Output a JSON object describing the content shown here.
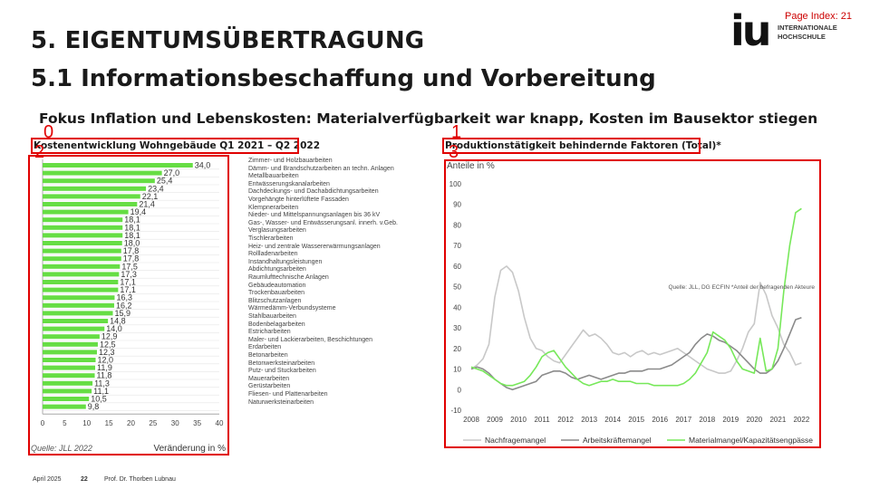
{
  "header": {
    "page_index": "Page Index: 21",
    "title": "5. EIGENTUMSÜBERTRAGUNG",
    "subtitle": "5.1 Informationsbeschaffung und Vorbereitung",
    "focus": "Fokus Inflation und Lebenskosten: Materialverfügbarkeit war knapp, Kosten im Bausektor stiegen"
  },
  "logo": {
    "mark": "iu",
    "line1": "INTERNATIONALE",
    "line2": "HOCHSCHULE"
  },
  "annotations": {
    "labels": [
      "0",
      "1",
      "2",
      "3"
    ]
  },
  "footer": {
    "date": "April 2025",
    "page": "22",
    "author": "Prof. Dr. Thorben Lubnau"
  },
  "colors": {
    "bar_green": "#66dd44",
    "line_light_gray": "#c8c8c8",
    "line_dark_gray": "#8a8a8a",
    "line_green": "#77e85a",
    "annotation_red": "#e00000"
  },
  "chart_data": [
    {
      "type": "bar",
      "orientation": "horizontal",
      "title": "Kostenentwicklung Wohngebäude Q1 2021 – Q2 2022",
      "xlabel": "Veränderung in %",
      "source": "Quelle: JLL 2022",
      "xlim": [
        0,
        40
      ],
      "xticks": [
        0,
        5,
        10,
        15,
        20,
        25,
        30,
        35,
        40
      ],
      "categories": [
        "Zimmer- und Holzbauarbeiten",
        "Dämm- und Brandschutzarbeiten an techn. Anlagen",
        "Metallbauarbeiten",
        "Entwässerungskanalarbeiten",
        "Dachdeckungs- und Dachabdichtungsarbeiten",
        "Vorgehängte hinterlüftete Fassaden",
        "Klempnerarbeiten",
        "Nieder- und Mittelspannungsanlagen bis 36 kV",
        "Gas-, Wasser- und Entwässerungsanl. innerh. v.Geb.",
        "Verglasungsarbeiten",
        "Tischlerarbeiten",
        "Heiz- und zentrale Wassererwärmungsanlagen",
        "Rollladenarbeiten",
        "Instandhaltungsleistungen",
        "Abdichtungsarbeiten",
        "Raumlufttechnische Anlagen",
        "Gebäudeautomation",
        "Trockenbauarbeiten",
        "Blitzschutzanlagen",
        "Wärmedämm-Verbundsysteme",
        "Stahlbauarbeiten",
        "Bodenbelagarbeiten",
        "Estricharbeiten",
        "Maler- und Lackierarbeiten, Beschichtungen",
        "Erdarbeiten",
        "Betonarbeiten",
        "Betonwerksteinarbeiten",
        "Putz- und Stuckarbeiten",
        "Mauerarbeiten",
        "Gerüstarbeiten",
        "Fliesen- und Plattenarbeiten",
        "Naturwerksteinarbeiten"
      ],
      "values": [
        34.0,
        27.0,
        25.4,
        23.4,
        22.1,
        21.4,
        19.4,
        18.1,
        18.1,
        18.1,
        18.0,
        17.8,
        17.8,
        17.5,
        17.3,
        17.1,
        17.1,
        16.3,
        16.2,
        15.9,
        14.8,
        14.0,
        12.9,
        12.5,
        12.3,
        12.0,
        11.9,
        11.8,
        11.3,
        11.1,
        10.5,
        9.8
      ],
      "value_labels": [
        "34,0",
        "27,0",
        "25,4",
        "23,4",
        "22,1",
        "21,4",
        "19,4",
        "18,1",
        "18,1",
        "18,1",
        "18,0",
        "17,8",
        "17,8",
        "17,5",
        "17,3",
        "17,1",
        "17,1",
        "16,3",
        "16,2",
        "15,9",
        "14,8",
        "14,0",
        "12,9",
        "12,5",
        "12,3",
        "12,0",
        "11,9",
        "11,8",
        "11,3",
        "11,1",
        "10,5",
        "9,8"
      ]
    },
    {
      "type": "line",
      "title": "Produktionstätigkeit behindernde Faktoren (Total)*",
      "ylabel": "Anteile in %",
      "source": "Quelle: JLL, DG ECFIN *Anteil der befragenden Akteure",
      "ylim": [
        -10,
        100
      ],
      "yticks": [
        -10,
        0,
        10,
        20,
        30,
        40,
        50,
        60,
        70,
        80,
        90,
        100
      ],
      "xlim": [
        2008,
        2022.1
      ],
      "xticks": [
        2008,
        2009,
        2010,
        2011,
        2012,
        2013,
        2014,
        2015,
        2016,
        2017,
        2018,
        2019,
        2020,
        2021,
        2022
      ],
      "series": [
        {
          "name": "Nachfragemangel",
          "color": "#c8c8c8",
          "points": [
            [
              2008,
              10
            ],
            [
              2008.25,
              12
            ],
            [
              2008.5,
              15
            ],
            [
              2008.75,
              22
            ],
            [
              2009,
              45
            ],
            [
              2009.25,
              58
            ],
            [
              2009.5,
              60
            ],
            [
              2009.75,
              57
            ],
            [
              2010,
              48
            ],
            [
              2010.25,
              35
            ],
            [
              2010.5,
              25
            ],
            [
              2010.75,
              20
            ],
            [
              2011,
              19
            ],
            [
              2011.25,
              16
            ],
            [
              2011.5,
              14
            ],
            [
              2011.75,
              13
            ],
            [
              2012,
              17
            ],
            [
              2012.25,
              21
            ],
            [
              2012.5,
              25
            ],
            [
              2012.75,
              29
            ],
            [
              2013,
              26
            ],
            [
              2013.25,
              27
            ],
            [
              2013.5,
              25
            ],
            [
              2013.75,
              22
            ],
            [
              2014,
              18
            ],
            [
              2014.25,
              17
            ],
            [
              2014.5,
              18
            ],
            [
              2014.75,
              16
            ],
            [
              2015,
              18
            ],
            [
              2015.25,
              19
            ],
            [
              2015.5,
              17
            ],
            [
              2015.75,
              18
            ],
            [
              2016,
              17
            ],
            [
              2016.25,
              18
            ],
            [
              2016.5,
              19
            ],
            [
              2016.75,
              20
            ],
            [
              2017,
              18
            ],
            [
              2017.25,
              16
            ],
            [
              2017.5,
              14
            ],
            [
              2017.75,
              12
            ],
            [
              2018,
              10
            ],
            [
              2018.25,
              9
            ],
            [
              2018.5,
              8
            ],
            [
              2018.75,
              8
            ],
            [
              2019,
              9
            ],
            [
              2019.25,
              14
            ],
            [
              2019.5,
              20
            ],
            [
              2019.75,
              28
            ],
            [
              2020,
              32
            ],
            [
              2020.25,
              52
            ],
            [
              2020.5,
              46
            ],
            [
              2020.75,
              36
            ],
            [
              2021,
              30
            ],
            [
              2021.25,
              22
            ],
            [
              2021.5,
              18
            ],
            [
              2021.75,
              12
            ],
            [
              2022,
              13
            ]
          ]
        },
        {
          "name": "Arbeitskräftemangel",
          "color": "#8a8a8a",
          "points": [
            [
              2008,
              10
            ],
            [
              2008.25,
              11
            ],
            [
              2008.5,
              10
            ],
            [
              2008.75,
              8
            ],
            [
              2009,
              5
            ],
            [
              2009.25,
              3
            ],
            [
              2009.5,
              1
            ],
            [
              2009.75,
              0
            ],
            [
              2010,
              1
            ],
            [
              2010.25,
              2
            ],
            [
              2010.5,
              3
            ],
            [
              2010.75,
              4
            ],
            [
              2011,
              7
            ],
            [
              2011.25,
              8
            ],
            [
              2011.5,
              9
            ],
            [
              2011.75,
              9
            ],
            [
              2012,
              8
            ],
            [
              2012.25,
              6
            ],
            [
              2012.5,
              5
            ],
            [
              2012.75,
              6
            ],
            [
              2013,
              7
            ],
            [
              2013.25,
              6
            ],
            [
              2013.5,
              5
            ],
            [
              2013.75,
              6
            ],
            [
              2014,
              7
            ],
            [
              2014.25,
              8
            ],
            [
              2014.5,
              8
            ],
            [
              2014.75,
              9
            ],
            [
              2015,
              9
            ],
            [
              2015.25,
              9
            ],
            [
              2015.5,
              10
            ],
            [
              2015.75,
              10
            ],
            [
              2016,
              10
            ],
            [
              2016.25,
              11
            ],
            [
              2016.5,
              12
            ],
            [
              2016.75,
              14
            ],
            [
              2017,
              16
            ],
            [
              2017.25,
              18
            ],
            [
              2017.5,
              22
            ],
            [
              2017.75,
              25
            ],
            [
              2018,
              27
            ],
            [
              2018.25,
              26
            ],
            [
              2018.5,
              24
            ],
            [
              2018.75,
              23
            ],
            [
              2019,
              21
            ],
            [
              2019.25,
              19
            ],
            [
              2019.5,
              16
            ],
            [
              2019.75,
              13
            ],
            [
              2020,
              10
            ],
            [
              2020.25,
              8
            ],
            [
              2020.5,
              8
            ],
            [
              2020.75,
              10
            ],
            [
              2021,
              14
            ],
            [
              2021.25,
              20
            ],
            [
              2021.5,
              27
            ],
            [
              2021.75,
              34
            ],
            [
              2022,
              35
            ]
          ]
        },
        {
          "name": "Materialmangel/Kapazitätsengpässe",
          "color": "#77e85a",
          "points": [
            [
              2008,
              11
            ],
            [
              2008.25,
              10
            ],
            [
              2008.5,
              9
            ],
            [
              2008.75,
              7
            ],
            [
              2009,
              5
            ],
            [
              2009.25,
              3
            ],
            [
              2009.5,
              2
            ],
            [
              2009.75,
              2
            ],
            [
              2010,
              3
            ],
            [
              2010.25,
              4
            ],
            [
              2010.5,
              7
            ],
            [
              2010.75,
              11
            ],
            [
              2011,
              16
            ],
            [
              2011.25,
              18
            ],
            [
              2011.5,
              19
            ],
            [
              2011.75,
              15
            ],
            [
              2012,
              11
            ],
            [
              2012.25,
              8
            ],
            [
              2012.5,
              5
            ],
            [
              2012.75,
              3
            ],
            [
              2013,
              2
            ],
            [
              2013.25,
              3
            ],
            [
              2013.5,
              4
            ],
            [
              2013.75,
              4
            ],
            [
              2014,
              5
            ],
            [
              2014.25,
              4
            ],
            [
              2014.5,
              4
            ],
            [
              2014.75,
              4
            ],
            [
              2015,
              3
            ],
            [
              2015.25,
              3
            ],
            [
              2015.5,
              3
            ],
            [
              2015.75,
              2
            ],
            [
              2016,
              2
            ],
            [
              2016.25,
              2
            ],
            [
              2016.5,
              2
            ],
            [
              2016.75,
              2
            ],
            [
              2017,
              3
            ],
            [
              2017.25,
              5
            ],
            [
              2017.5,
              8
            ],
            [
              2017.75,
              13
            ],
            [
              2018,
              18
            ],
            [
              2018.25,
              28
            ],
            [
              2018.5,
              26
            ],
            [
              2018.75,
              24
            ],
            [
              2019,
              20
            ],
            [
              2019.25,
              14
            ],
            [
              2019.5,
              10
            ],
            [
              2019.75,
              9
            ],
            [
              2020,
              8
            ],
            [
              2020.25,
              25
            ],
            [
              2020.5,
              9
            ],
            [
              2020.75,
              10
            ],
            [
              2021,
              20
            ],
            [
              2021.25,
              48
            ],
            [
              2021.5,
              70
            ],
            [
              2021.75,
              86
            ],
            [
              2022,
              88
            ]
          ]
        }
      ]
    }
  ]
}
